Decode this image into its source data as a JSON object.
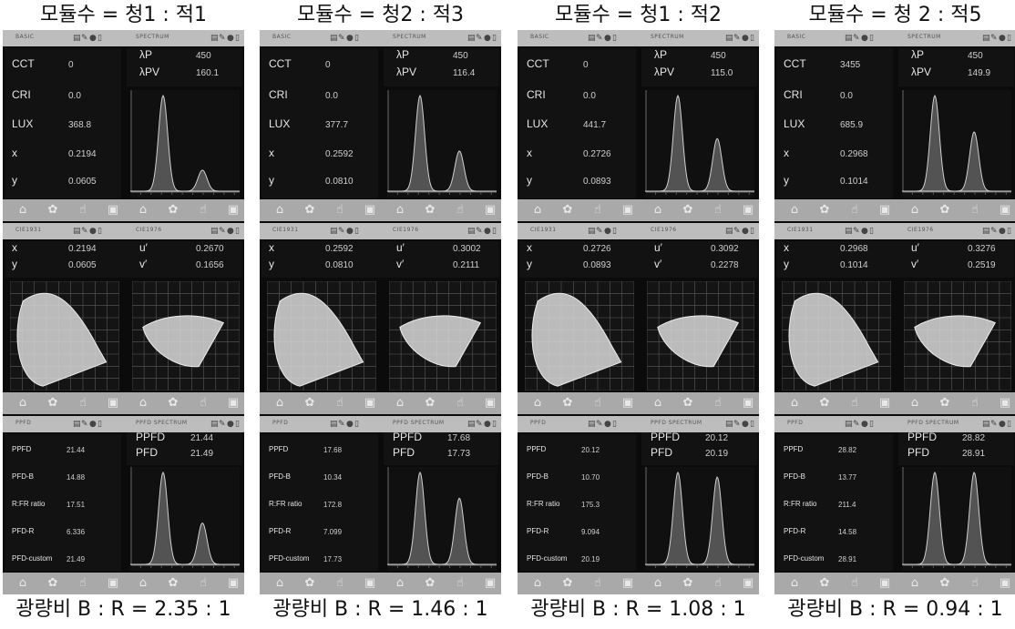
{
  "panels": [
    {
      "title": "모듈수 = 청1 : 적1",
      "footer": "광량비 B : R = 2.35 : 1",
      "basic": {
        "header_left": "BASIC",
        "header_right": "SPECTRUM",
        "rows": [
          {
            "label": "CCT",
            "value": "0"
          },
          {
            "label": "CRI",
            "value": "0.0"
          },
          {
            "label": "LUX",
            "value": "368.8"
          },
          {
            "label": "x",
            "value": "0.2194"
          },
          {
            "label": "y",
            "value": "0.0605"
          }
        ],
        "lp_label": "λP",
        "lp_value": "450",
        "lpv_label": "λPV",
        "lpv_value": "160.1"
      },
      "cie": {
        "header_left": "CIE1931",
        "header_right": "CIE1976",
        "x_value": "0.2194",
        "y_value": "0.0605",
        "u_value": "0.2670",
        "v_value": "0.1656"
      },
      "ppfd": {
        "header_left": "PPFD",
        "header_right": "PPFD SPECTRUM",
        "rows": [
          {
            "label": "PPFD",
            "value": "21.44"
          },
          {
            "label": "PFD-B",
            "value": "14.88"
          },
          {
            "label": "R:FR ratio",
            "value": "17.51"
          },
          {
            "label": "PFD-R",
            "value": "6.336"
          },
          {
            "label": "PFD-custom",
            "value": "21.49"
          }
        ],
        "ppfd_label": "PPFD",
        "ppfd_value": "21.44",
        "pfd_label": "PFD",
        "pfd_value": "21.49"
      },
      "spectrum_peaks": {
        "blue": 1.0,
        "red": 0.22
      },
      "ppfd_peaks": {
        "blue": 1.0,
        "red": 0.45
      }
    },
    {
      "title": "모듈수 = 청2 : 적3",
      "footer": "광량비 B : R = 1.46 : 1",
      "basic": {
        "header_left": "BASIC",
        "header_right": "SPECTRUM",
        "rows": [
          {
            "label": "CCT",
            "value": "0"
          },
          {
            "label": "CRI",
            "value": "0.0"
          },
          {
            "label": "LUX",
            "value": "377.7"
          },
          {
            "label": "x",
            "value": "0.2592"
          },
          {
            "label": "y",
            "value": "0.0810"
          }
        ],
        "lp_label": "λP",
        "lp_value": "450",
        "lpv_label": "λPV",
        "lpv_value": "116.4"
      },
      "cie": {
        "header_left": "CIE1931",
        "header_right": "CIE1976",
        "x_value": "0.2592",
        "y_value": "0.0810",
        "u_value": "0.3002",
        "v_value": "0.2111"
      },
      "ppfd": {
        "header_left": "PPFD",
        "header_right": "PPFD SPECTRUM",
        "rows": [
          {
            "label": "PPFD",
            "value": "17.68"
          },
          {
            "label": "PFD-B",
            "value": "10.34"
          },
          {
            "label": "R:FR ratio",
            "value": "172.8"
          },
          {
            "label": "PFD-R",
            "value": "7.099"
          },
          {
            "label": "PFD-custom",
            "value": "17.73"
          }
        ],
        "ppfd_label": "PPFD",
        "ppfd_value": "17.68",
        "pfd_label": "PFD",
        "pfd_value": "17.73"
      },
      "spectrum_peaks": {
        "blue": 1.0,
        "red": 0.42
      },
      "ppfd_peaks": {
        "blue": 1.0,
        "red": 0.72
      }
    },
    {
      "title": "모듈수 = 청1 : 적2",
      "footer": "광량비 B : R = 1.08 : 1",
      "basic": {
        "header_left": "BASIC",
        "header_right": "SPECTRUM",
        "rows": [
          {
            "label": "CCT",
            "value": "0"
          },
          {
            "label": "CRI",
            "value": "0.0"
          },
          {
            "label": "LUX",
            "value": "441.7"
          },
          {
            "label": "x",
            "value": "0.2726"
          },
          {
            "label": "y",
            "value": "0.0893"
          }
        ],
        "lp_label": "λP",
        "lp_value": "450",
        "lpv_label": "λPV",
        "lpv_value": "115.0"
      },
      "cie": {
        "header_left": "CIE1931",
        "header_right": "CIE1976",
        "x_value": "0.2726",
        "y_value": "0.0893",
        "u_value": "0.3092",
        "v_value": "0.2278"
      },
      "ppfd": {
        "header_left": "PPFD",
        "header_right": "PPFD SPECTRUM",
        "rows": [
          {
            "label": "PPFD",
            "value": "20.12"
          },
          {
            "label": "PFD-B",
            "value": "10.70"
          },
          {
            "label": "R:FR ratio",
            "value": "175.3"
          },
          {
            "label": "PFD-R",
            "value": "9.094"
          },
          {
            "label": "PFD-custom",
            "value": "20.19"
          }
        ],
        "ppfd_label": "PPFD",
        "ppfd_value": "20.12",
        "pfd_label": "PFD",
        "pfd_value": "20.19"
      },
      "spectrum_peaks": {
        "blue": 1.0,
        "red": 0.55
      },
      "ppfd_peaks": {
        "blue": 1.0,
        "red": 0.95
      }
    },
    {
      "title": "모듈수 = 청 2 : 적5",
      "footer": "광량비 B : R = 0.94 : 1",
      "basic": {
        "header_left": "BASIC",
        "header_right": "SPECTRUM",
        "rows": [
          {
            "label": "CCT",
            "value": "3455"
          },
          {
            "label": "CRI",
            "value": "0.0"
          },
          {
            "label": "LUX",
            "value": "685.9"
          },
          {
            "label": "x",
            "value": "0.2968"
          },
          {
            "label": "y",
            "value": "0.1014"
          }
        ],
        "lp_label": "λP",
        "lp_value": "450",
        "lpv_label": "λPV",
        "lpv_value": "149.9"
      },
      "cie": {
        "header_left": "CIE1931",
        "header_right": "CIE1976",
        "x_value": "0.2968",
        "y_value": "0.1014",
        "u_value": "0.3276",
        "v_value": "0.2519"
      },
      "ppfd": {
        "header_left": "PPFD",
        "header_right": "PPFD SPECTRUM",
        "rows": [
          {
            "label": "PPFD",
            "value": "28.82"
          },
          {
            "label": "PFD-B",
            "value": "13.77"
          },
          {
            "label": "R:FR ratio",
            "value": "211.4"
          },
          {
            "label": "PFD-R",
            "value": "14.58"
          },
          {
            "label": "PFD-custom",
            "value": "28.91"
          }
        ],
        "ppfd_label": "PPFD",
        "ppfd_value": "28.82",
        "pfd_label": "PFD",
        "pfd_value": "28.91"
      },
      "spectrum_peaks": {
        "blue": 1.0,
        "red": 0.62
      },
      "ppfd_peaks": {
        "blue": 1.0,
        "red": 1.0
      }
    }
  ],
  "nav_icons": [
    "home-icon",
    "gear-icon",
    "hand-icon",
    "save-icon",
    "home-icon",
    "gear-icon",
    "hand-icon",
    "save-icon"
  ],
  "header_icons": [
    "camera-icon",
    "edit-icon",
    "record-icon",
    "battery-icon"
  ]
}
